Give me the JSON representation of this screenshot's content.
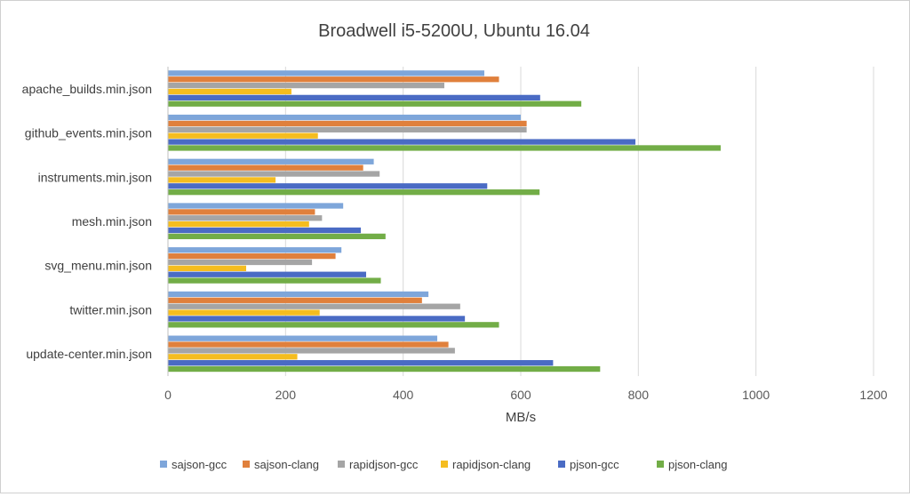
{
  "chart_data": {
    "type": "bar",
    "orientation": "horizontal",
    "title": "Broadwell i5-5200U, Ubuntu 16.04",
    "xlabel": "MB/s",
    "ylabel": "",
    "xlim": [
      0,
      1200
    ],
    "x_ticks": [
      "0",
      "200",
      "400",
      "600",
      "800",
      "1000",
      "1200"
    ],
    "grid": true,
    "legend_position": "bottom",
    "categories": [
      "apache_builds.min.json",
      "github_events.min.json",
      "instruments.min.json",
      "mesh.min.json",
      "svg_menu.min.json",
      "twitter.min.json",
      "update-center.min.json"
    ],
    "series": [
      {
        "name": "sajson-gcc",
        "color": "#7ea6da",
        "values": [
          538,
          600,
          350,
          298,
          295,
          443,
          458
        ]
      },
      {
        "name": "sajson-clang",
        "color": "#e0803c",
        "values": [
          563,
          610,
          332,
          250,
          285,
          432,
          477
        ]
      },
      {
        "name": "rapidjson-gcc",
        "color": "#a5a5a5",
        "values": [
          470,
          610,
          360,
          262,
          245,
          497,
          488
        ]
      },
      {
        "name": "rapidjson-clang",
        "color": "#f5bd1f",
        "values": [
          210,
          255,
          183,
          240,
          133,
          258,
          220
        ]
      },
      {
        "name": "pjson-gcc",
        "color": "#4a6bc4",
        "values": [
          633,
          795,
          543,
          328,
          337,
          505,
          655
        ]
      },
      {
        "name": "pjson-clang",
        "color": "#72ad47",
        "values": [
          703,
          940,
          632,
          370,
          362,
          563,
          735
        ]
      }
    ]
  }
}
